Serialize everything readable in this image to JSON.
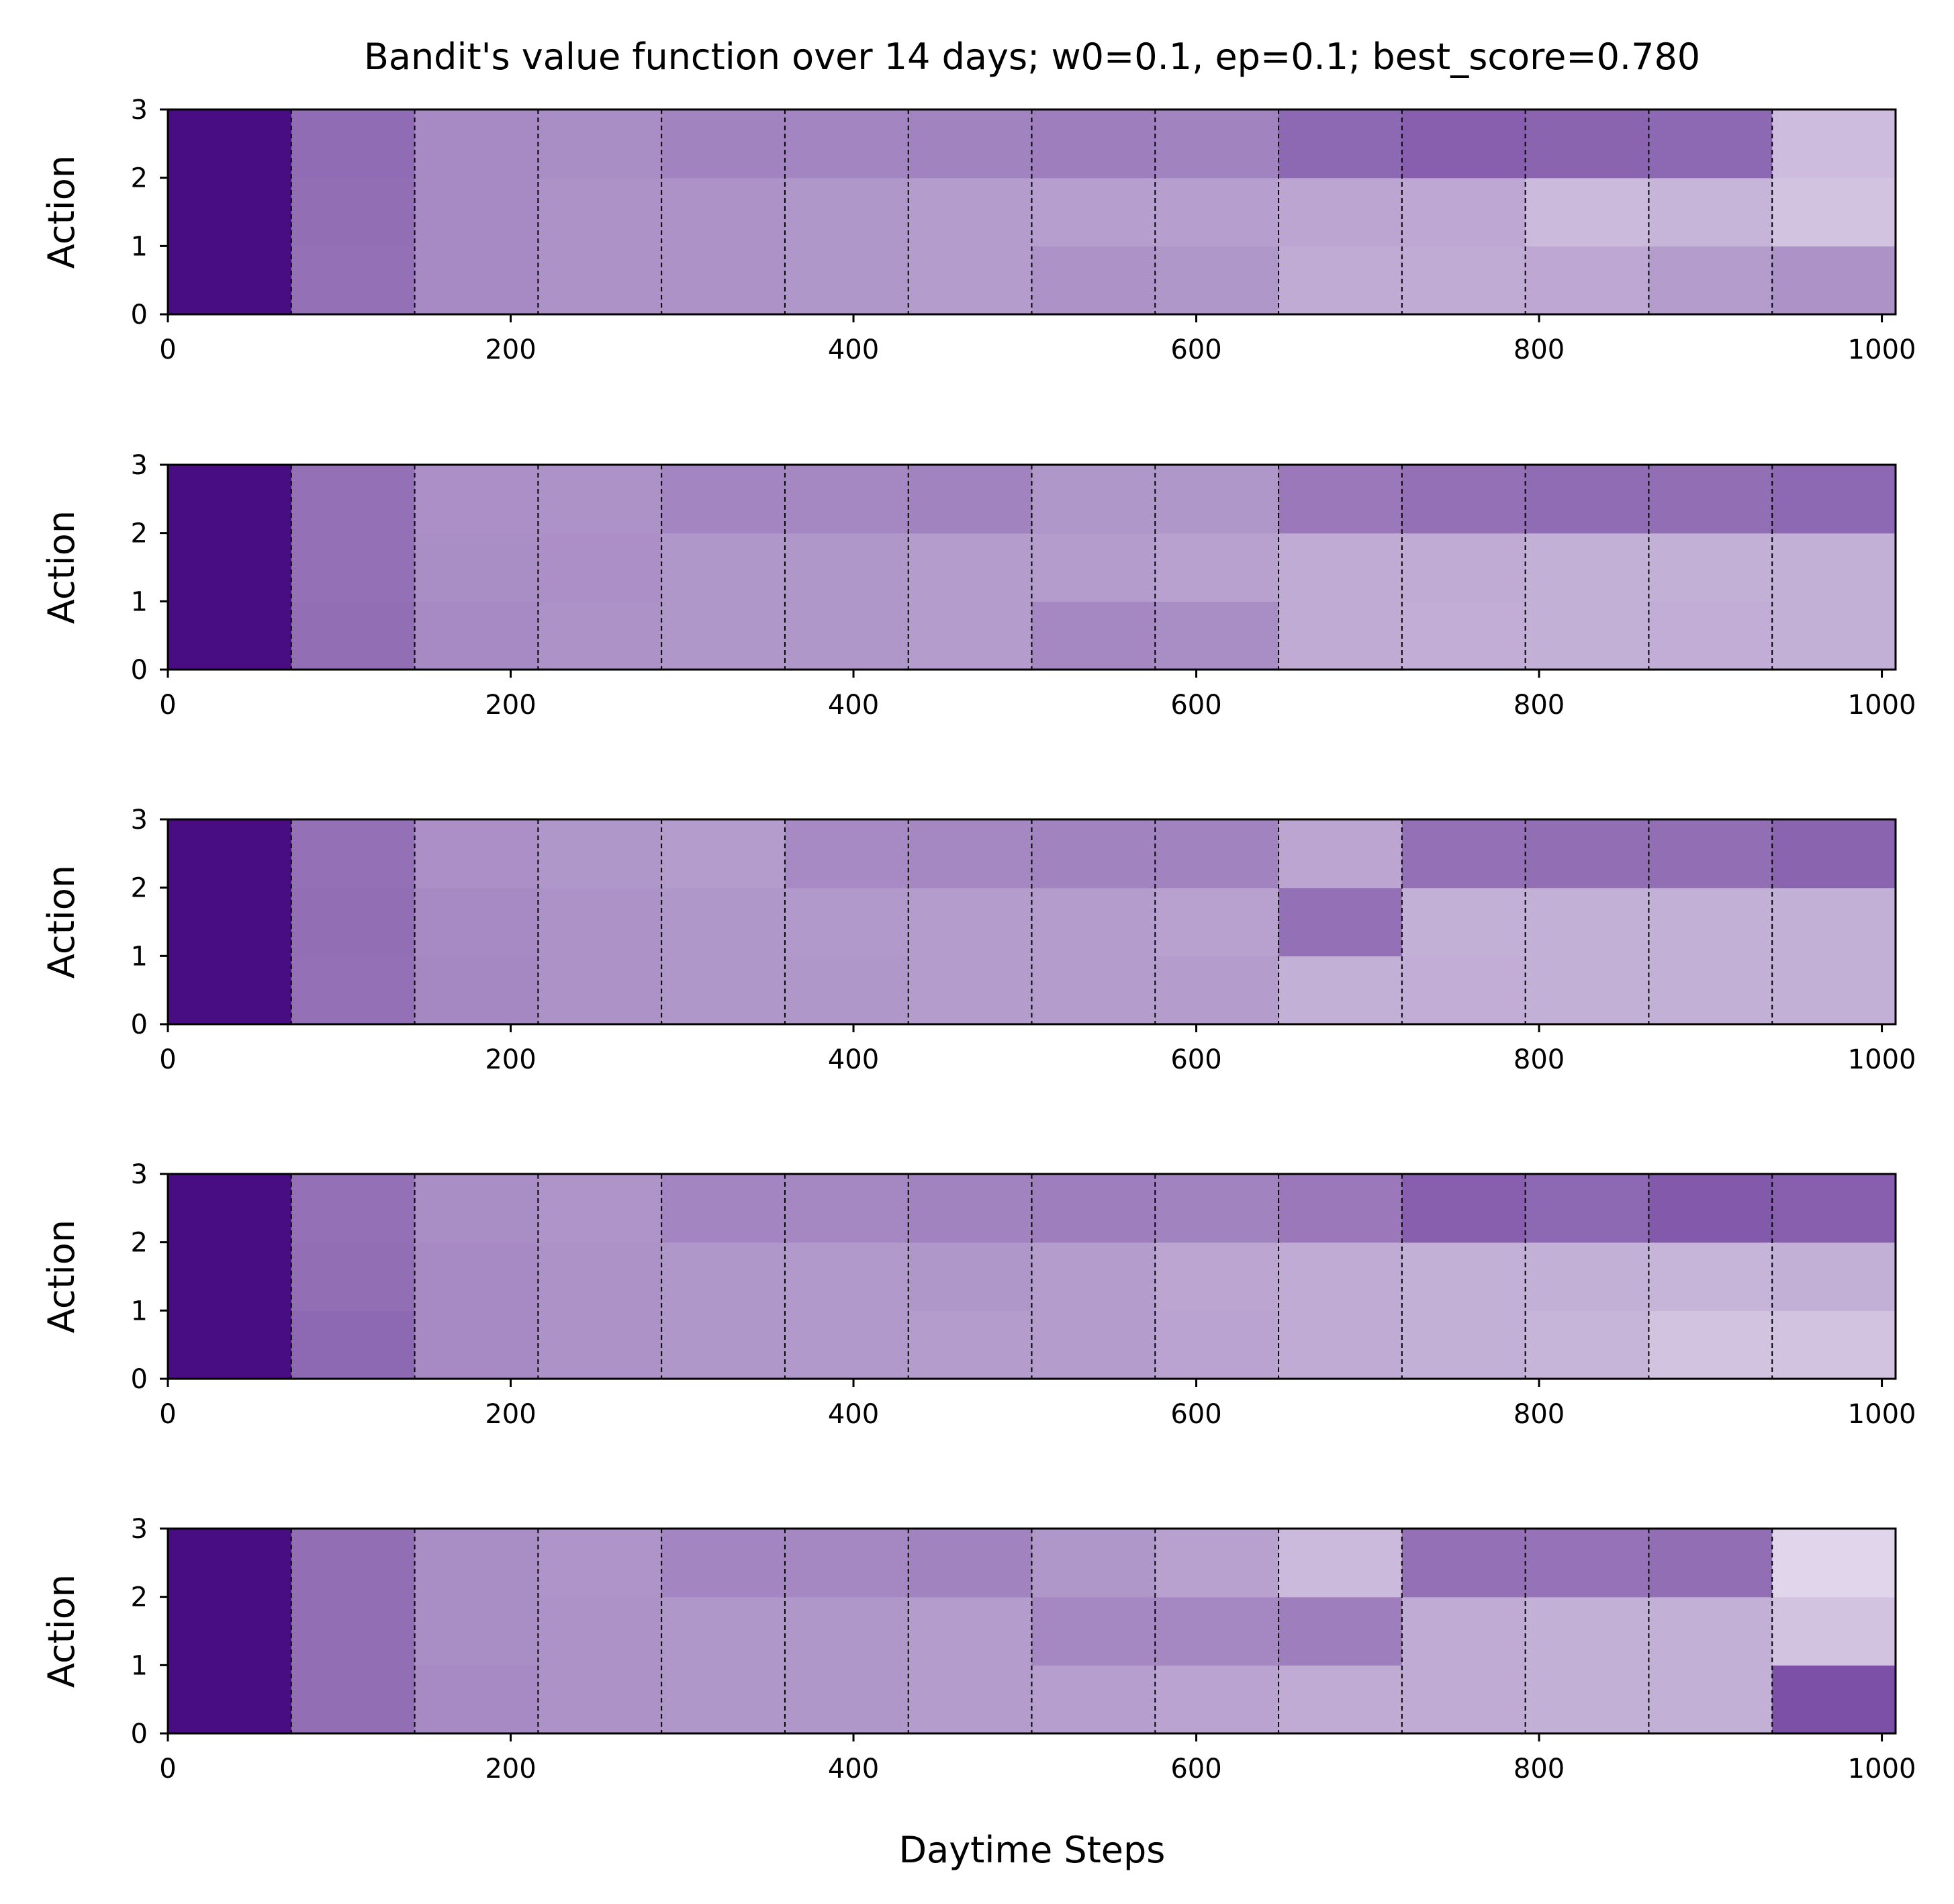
{
  "figure": {
    "title": "Bandit's value function over 14 days; w0=0.1, ep=0.1; best_score=0.780",
    "xlabel": "Daytime Steps",
    "colormap": "Purples",
    "colors": {
      "dark": "#3f007d",
      "light": "#fcfbfd",
      "divider": "#000000"
    }
  },
  "chart_data": [
    {
      "type": "heatmap",
      "panel": 1,
      "ylabel": "Action",
      "xlim": [
        0,
        1008
      ],
      "ylim": [
        0,
        3
      ],
      "xticks": [
        0,
        200,
        400,
        600,
        800,
        1000
      ],
      "yticks": [
        0,
        1,
        2,
        3
      ],
      "day_boundaries": [
        72,
        144,
        216,
        288,
        360,
        432,
        504,
        576,
        648,
        720,
        792,
        864,
        936
      ],
      "actions": [
        0,
        1,
        2
      ],
      "values_by_day": [
        [
          0.95,
          0.95,
          0.95
        ],
        [
          0.55,
          0.56,
          0.57
        ],
        [
          0.45,
          0.45,
          0.45
        ],
        [
          0.42,
          0.42,
          0.44
        ],
        [
          0.42,
          0.42,
          0.48
        ],
        [
          0.4,
          0.4,
          0.47
        ],
        [
          0.38,
          0.38,
          0.48
        ],
        [
          0.42,
          0.37,
          0.5
        ],
        [
          0.4,
          0.37,
          0.48
        ],
        [
          0.32,
          0.34,
          0.58
        ],
        [
          0.32,
          0.33,
          0.62
        ],
        [
          0.33,
          0.26,
          0.6
        ],
        [
          0.38,
          0.28,
          0.58
        ],
        [
          0.42,
          0.22,
          0.25
        ]
      ]
    },
    {
      "type": "heatmap",
      "panel": 2,
      "ylabel": "Action",
      "xlim": [
        0,
        1008
      ],
      "ylim": [
        0,
        3
      ],
      "xticks": [
        0,
        200,
        400,
        600,
        800,
        1000
      ],
      "yticks": [
        0,
        1,
        2,
        3
      ],
      "day_boundaries": [
        72,
        144,
        216,
        288,
        360,
        432,
        504,
        576,
        648,
        720,
        792,
        864,
        936
      ],
      "actions": [
        0,
        1,
        2
      ],
      "values_by_day": [
        [
          0.95,
          0.95,
          0.95
        ],
        [
          0.56,
          0.55,
          0.55
        ],
        [
          0.45,
          0.44,
          0.43
        ],
        [
          0.42,
          0.43,
          0.42
        ],
        [
          0.4,
          0.4,
          0.47
        ],
        [
          0.4,
          0.4,
          0.46
        ],
        [
          0.38,
          0.38,
          0.48
        ],
        [
          0.46,
          0.38,
          0.4
        ],
        [
          0.44,
          0.36,
          0.4
        ],
        [
          0.32,
          0.32,
          0.52
        ],
        [
          0.31,
          0.32,
          0.55
        ],
        [
          0.3,
          0.3,
          0.57
        ],
        [
          0.31,
          0.3,
          0.56
        ],
        [
          0.3,
          0.3,
          0.58
        ]
      ]
    },
    {
      "type": "heatmap",
      "panel": 3,
      "ylabel": "Action",
      "xlim": [
        0,
        1008
      ],
      "ylim": [
        0,
        3
      ],
      "xticks": [
        0,
        200,
        400,
        600,
        800,
        1000
      ],
      "yticks": [
        0,
        1,
        2,
        3
      ],
      "day_boundaries": [
        72,
        144,
        216,
        288,
        360,
        432,
        504,
        576,
        648,
        720,
        792,
        864,
        936
      ],
      "actions": [
        0,
        1,
        2
      ],
      "values_by_day": [
        [
          0.95,
          0.95,
          0.95
        ],
        [
          0.55,
          0.56,
          0.55
        ],
        [
          0.46,
          0.45,
          0.43
        ],
        [
          0.42,
          0.42,
          0.4
        ],
        [
          0.4,
          0.4,
          0.38
        ],
        [
          0.4,
          0.39,
          0.45
        ],
        [
          0.38,
          0.38,
          0.46
        ],
        [
          0.38,
          0.38,
          0.48
        ],
        [
          0.38,
          0.36,
          0.48
        ],
        [
          0.3,
          0.55,
          0.34
        ],
        [
          0.31,
          0.3,
          0.55
        ],
        [
          0.3,
          0.3,
          0.56
        ],
        [
          0.3,
          0.3,
          0.56
        ],
        [
          0.3,
          0.3,
          0.6
        ]
      ]
    },
    {
      "type": "heatmap",
      "panel": 4,
      "ylabel": "Action",
      "xlim": [
        0,
        1008
      ],
      "ylim": [
        0,
        3
      ],
      "xticks": [
        0,
        200,
        400,
        600,
        800,
        1000
      ],
      "yticks": [
        0,
        1,
        2,
        3
      ],
      "day_boundaries": [
        72,
        144,
        216,
        288,
        360,
        432,
        504,
        576,
        648,
        720,
        792,
        864,
        936
      ],
      "actions": [
        0,
        1,
        2
      ],
      "values_by_day": [
        [
          0.95,
          0.95,
          0.95
        ],
        [
          0.58,
          0.56,
          0.55
        ],
        [
          0.45,
          0.45,
          0.44
        ],
        [
          0.42,
          0.42,
          0.41
        ],
        [
          0.4,
          0.4,
          0.47
        ],
        [
          0.39,
          0.39,
          0.46
        ],
        [
          0.38,
          0.4,
          0.48
        ],
        [
          0.38,
          0.38,
          0.5
        ],
        [
          0.35,
          0.34,
          0.48
        ],
        [
          0.32,
          0.32,
          0.52
        ],
        [
          0.3,
          0.3,
          0.62
        ],
        [
          0.28,
          0.3,
          0.58
        ],
        [
          0.22,
          0.28,
          0.64
        ],
        [
          0.22,
          0.3,
          0.62
        ]
      ]
    },
    {
      "type": "heatmap",
      "panel": 5,
      "ylabel": "Action",
      "xlim": [
        0,
        1008
      ],
      "ylim": [
        0,
        3
      ],
      "xticks": [
        0,
        200,
        400,
        600,
        800,
        1000
      ],
      "yticks": [
        0,
        1,
        2,
        3
      ],
      "day_boundaries": [
        72,
        144,
        216,
        288,
        360,
        432,
        504,
        576,
        648,
        720,
        792,
        864,
        936
      ],
      "actions": [
        0,
        1,
        2
      ],
      "values_by_day": [
        [
          0.95,
          0.95,
          0.95
        ],
        [
          0.56,
          0.56,
          0.56
        ],
        [
          0.45,
          0.44,
          0.44
        ],
        [
          0.42,
          0.42,
          0.41
        ],
        [
          0.4,
          0.4,
          0.47
        ],
        [
          0.4,
          0.4,
          0.46
        ],
        [
          0.38,
          0.38,
          0.48
        ],
        [
          0.37,
          0.46,
          0.4
        ],
        [
          0.35,
          0.46,
          0.36
        ],
        [
          0.32,
          0.5,
          0.26
        ],
        [
          0.32,
          0.32,
          0.55
        ],
        [
          0.3,
          0.3,
          0.54
        ],
        [
          0.3,
          0.3,
          0.56
        ],
        [
          0.68,
          0.22,
          0.15
        ]
      ]
    }
  ]
}
